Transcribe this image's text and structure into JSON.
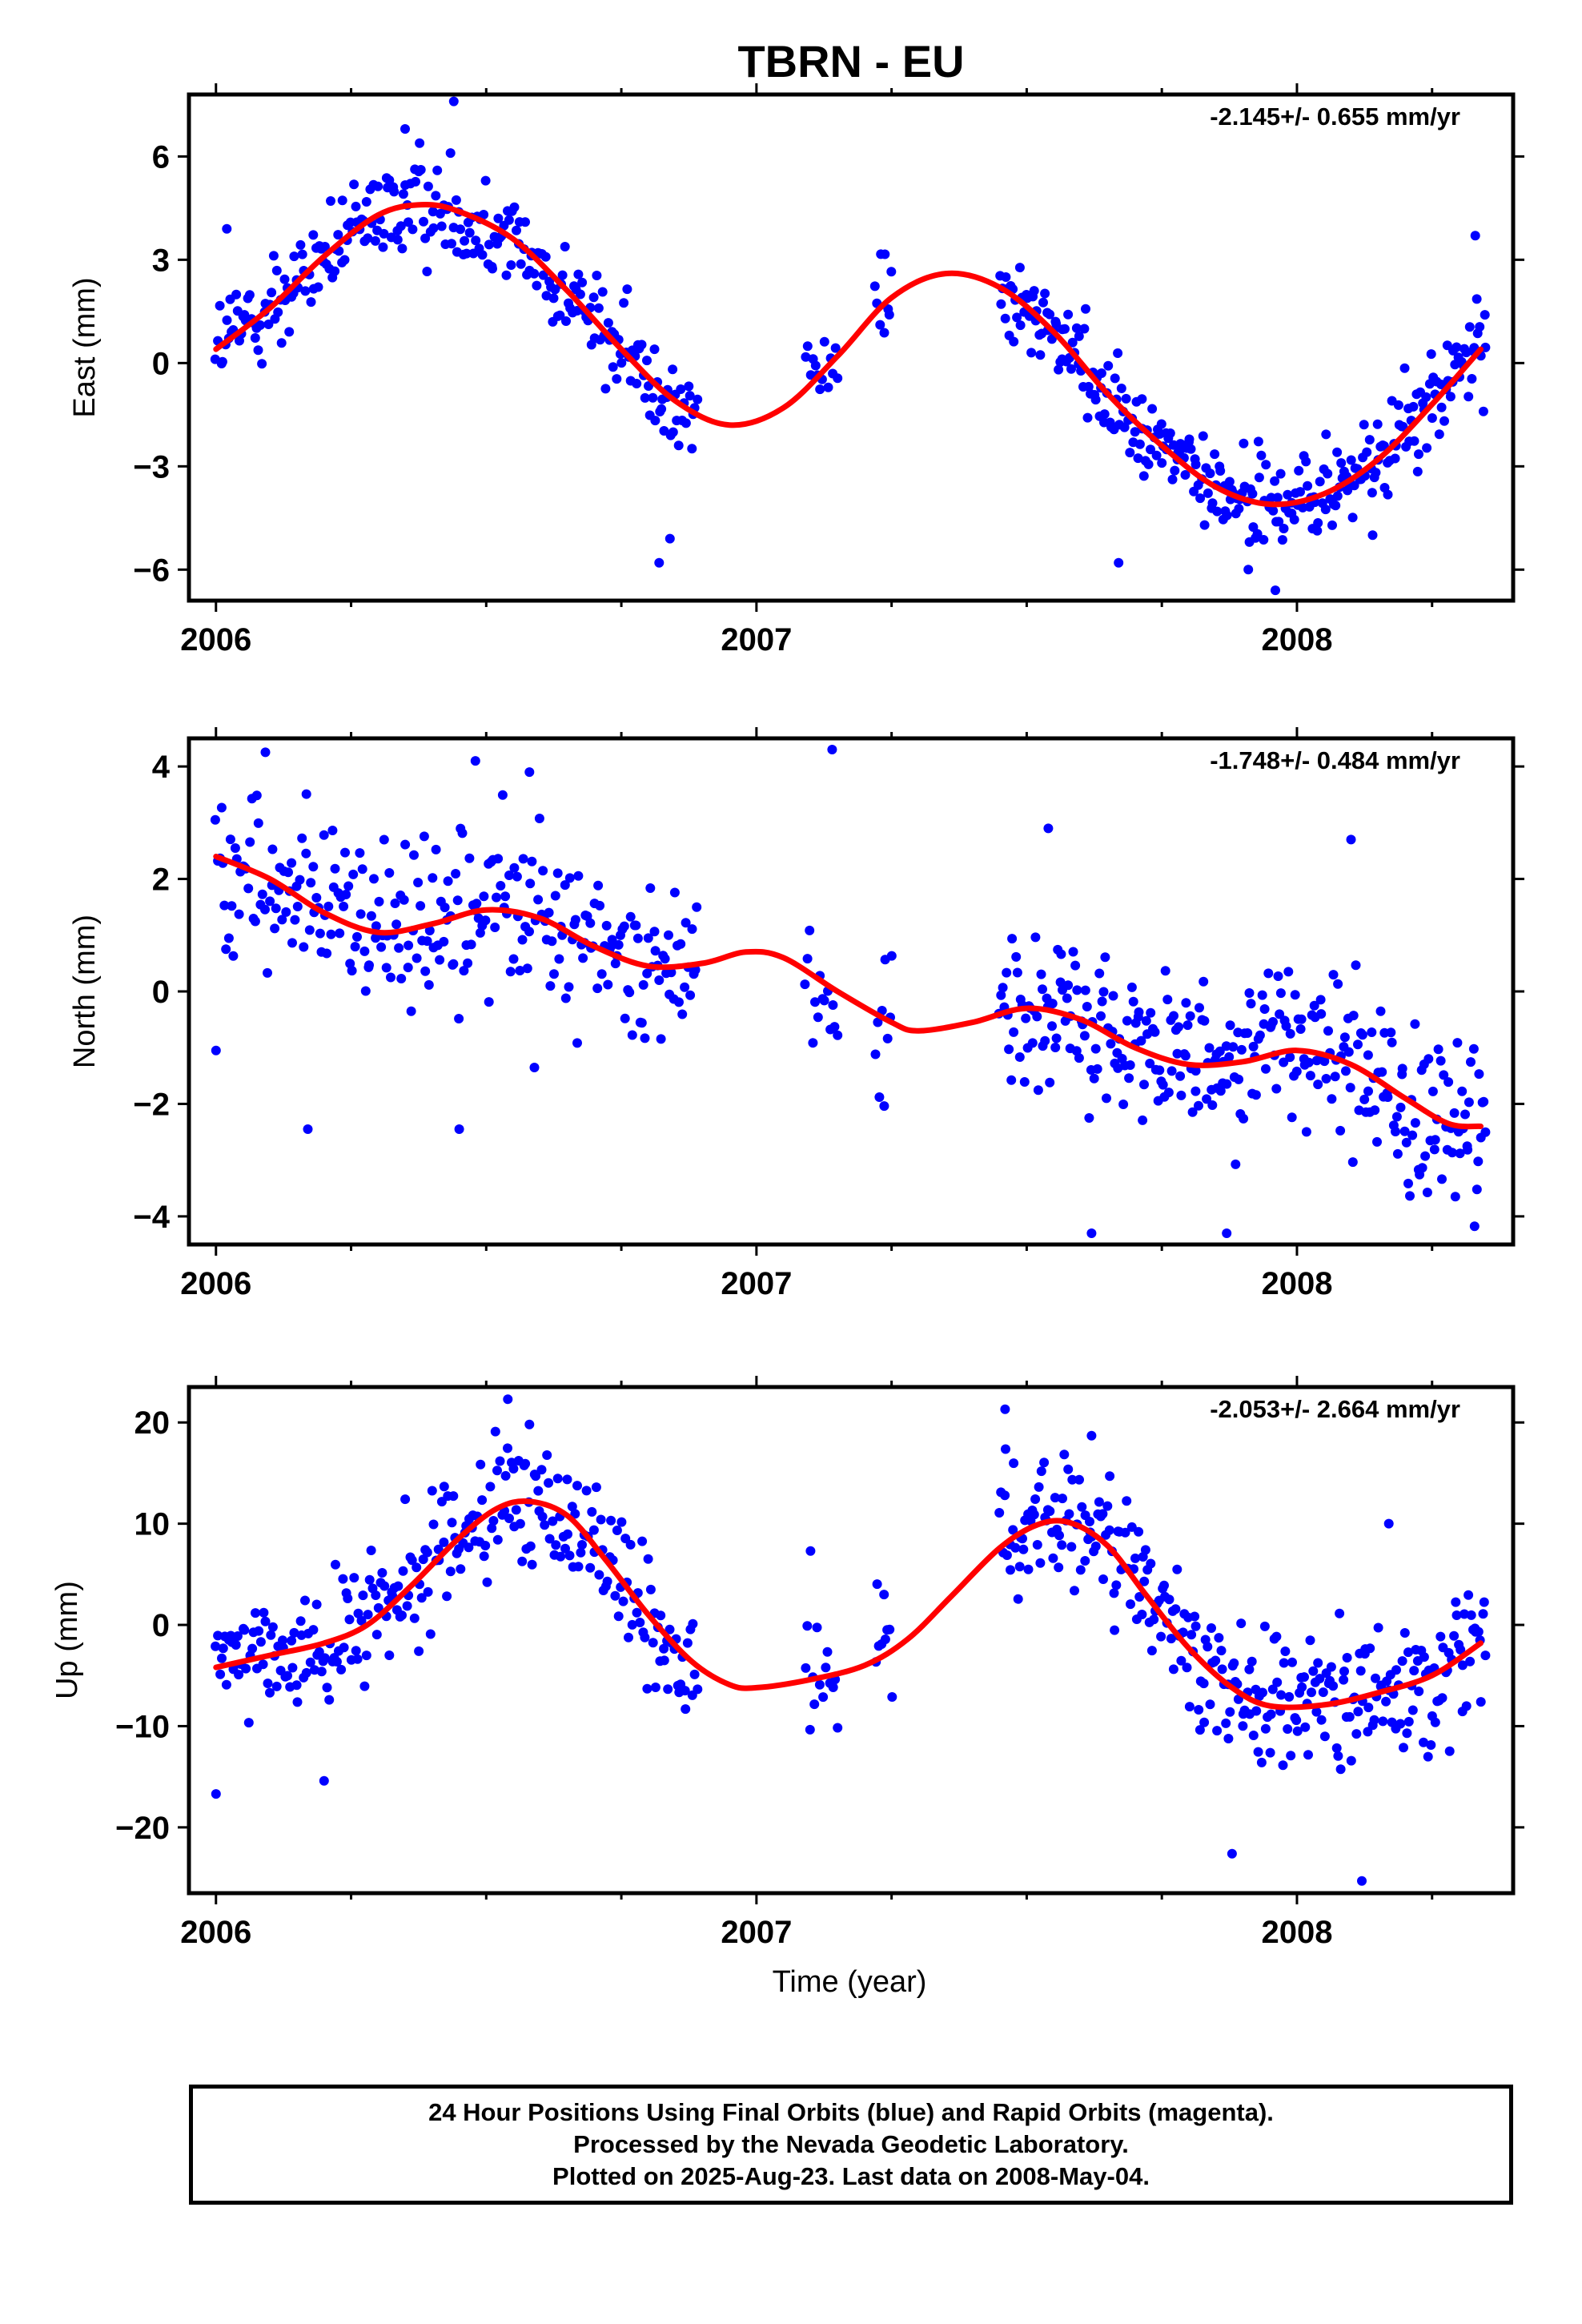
{
  "title": "TBRN - EU",
  "xlabel": "Time (year)",
  "footer": {
    "line1": "24 Hour Positions Using Final Orbits (blue) and Rapid Orbits (magenta).",
    "line2": "Processed by the Nevada Geodetic Laboratory.",
    "line3": "Plotted on 2025-Aug-23. Last data on 2008-May-04."
  },
  "colors": {
    "final_orbits": "#0000ff",
    "rapid_orbits": "#ff00ff",
    "fit": "#ff0000",
    "axes": "#000000"
  },
  "chart_data": [
    {
      "type": "scatter",
      "ylabel": "East (mm)",
      "rate": "-2.145+/- 0.655 mm/yr",
      "xlim": [
        2005.95,
        2008.4
      ],
      "ylim": [
        -6.9,
        7.8
      ],
      "xticks": [
        2006,
        2007,
        2008
      ],
      "yticks": [
        -6,
        -3,
        0,
        3,
        6
      ],
      "yticklabels": [
        "−6",
        "−3",
        "0",
        "3",
        "6"
      ],
      "grid": false,
      "series": [
        {
          "kind": "points",
          "segments": [
            {
              "from": 2006.0,
              "to": 2006.89,
              "n": 270,
              "scatter": 0.95
            },
            {
              "from": 2007.09,
              "to": 2007.15,
              "n": 14,
              "scatter": 0.75
            },
            {
              "from": 2007.22,
              "to": 2007.25,
              "n": 9,
              "scatter": 1.5
            },
            {
              "from": 2007.45,
              "to": 2008.35,
              "n": 300,
              "scatter": 0.95
            }
          ],
          "outliers": [
            [
              2006.02,
              3.9
            ],
            [
              2006.35,
              6.8
            ],
            [
              2006.44,
              7.6
            ],
            [
              2006.82,
              -5.8
            ],
            [
              2006.84,
              -5.1
            ],
            [
              2007.91,
              -6.0
            ],
            [
              2007.96,
              -6.6
            ],
            [
              2007.67,
              -5.8
            ],
            [
              2008.14,
              -5.0
            ],
            [
              2008.33,
              3.7
            ]
          ]
        },
        {
          "kind": "fit",
          "trend_mm_per_yr": -2.145,
          "points": [
            [
              2006.0,
              0.4
            ],
            [
              2006.1,
              1.6
            ],
            [
              2006.2,
              3.1
            ],
            [
              2006.3,
              4.3
            ],
            [
              2006.38,
              4.6
            ],
            [
              2006.45,
              4.4
            ],
            [
              2006.55,
              3.6
            ],
            [
              2006.65,
              2.1
            ],
            [
              2006.75,
              0.4
            ],
            [
              2006.85,
              -1.1
            ],
            [
              2006.95,
              -1.8
            ],
            [
              2007.05,
              -1.3
            ],
            [
              2007.15,
              0.2
            ],
            [
              2007.25,
              1.9
            ],
            [
              2007.35,
              2.6
            ],
            [
              2007.45,
              2.2
            ],
            [
              2007.55,
              0.9
            ],
            [
              2007.65,
              -0.9
            ],
            [
              2007.75,
              -2.4
            ],
            [
              2007.85,
              -3.6
            ],
            [
              2007.95,
              -4.1
            ],
            [
              2008.05,
              -3.8
            ],
            [
              2008.15,
              -2.8
            ],
            [
              2008.25,
              -1.2
            ],
            [
              2008.34,
              0.4
            ]
          ]
        }
      ]
    },
    {
      "type": "scatter",
      "ylabel": "North (mm)",
      "rate": "-1.748+/- 0.484 mm/yr",
      "xlim": [
        2005.95,
        2008.4
      ],
      "ylim": [
        -4.5,
        4.5
      ],
      "xticks": [
        2006,
        2007,
        2008
      ],
      "yticks": [
        -4,
        -2,
        0,
        2,
        4
      ],
      "yticklabels": [
        "−4",
        "−2",
        "0",
        "2",
        "4"
      ],
      "grid": false,
      "series": [
        {
          "kind": "points",
          "segments": [
            {
              "from": 2006.0,
              "to": 2006.89,
              "n": 270,
              "scatter": 1.05
            },
            {
              "from": 2007.09,
              "to": 2007.15,
              "n": 14,
              "scatter": 0.7
            },
            {
              "from": 2007.22,
              "to": 2007.25,
              "n": 9,
              "scatter": 0.9
            },
            {
              "from": 2007.45,
              "to": 2008.35,
              "n": 300,
              "scatter": 1.0
            }
          ],
          "outliers": [
            [
              2006.0,
              -1.05
            ],
            [
              2006.17,
              -2.45
            ],
            [
              2006.45,
              -2.45
            ],
            [
              2006.48,
              4.1
            ],
            [
              2006.58,
              3.9
            ],
            [
              2007.14,
              4.3
            ],
            [
              2007.54,
              2.9
            ],
            [
              2007.62,
              -4.3
            ],
            [
              2007.87,
              -4.3
            ],
            [
              2008.1,
              2.7
            ]
          ]
        },
        {
          "kind": "fit",
          "trend_mm_per_yr": -1.748,
          "points": [
            [
              2006.0,
              2.4
            ],
            [
              2006.1,
              2.0
            ],
            [
              2006.2,
              1.4
            ],
            [
              2006.3,
              1.05
            ],
            [
              2006.4,
              1.2
            ],
            [
              2006.5,
              1.45
            ],
            [
              2006.6,
              1.3
            ],
            [
              2006.7,
              0.8
            ],
            [
              2006.8,
              0.45
            ],
            [
              2006.9,
              0.5
            ],
            [
              2006.98,
              0.7
            ],
            [
              2007.05,
              0.6
            ],
            [
              2007.15,
              0.0
            ],
            [
              2007.25,
              -0.55
            ],
            [
              2007.3,
              -0.7
            ],
            [
              2007.4,
              -0.55
            ],
            [
              2007.5,
              -0.3
            ],
            [
              2007.6,
              -0.5
            ],
            [
              2007.7,
              -1.0
            ],
            [
              2007.8,
              -1.3
            ],
            [
              2007.9,
              -1.25
            ],
            [
              2008.0,
              -1.05
            ],
            [
              2008.1,
              -1.3
            ],
            [
              2008.2,
              -1.9
            ],
            [
              2008.28,
              -2.35
            ],
            [
              2008.34,
              -2.4
            ]
          ]
        }
      ]
    },
    {
      "type": "scatter",
      "ylabel": "Up (mm)",
      "rate": "-2.053+/- 2.664 mm/yr",
      "xlim": [
        2005.95,
        2008.4
      ],
      "ylim": [
        -26.5,
        23.5
      ],
      "xticks": [
        2006,
        2007,
        2008
      ],
      "yticks": [
        -20,
        -10,
        0,
        10,
        20
      ],
      "yticklabels": [
        "−20",
        "−10",
        "0",
        "10",
        "20"
      ],
      "grid": false,
      "series": [
        {
          "kind": "points",
          "segments": [
            {
              "from": 2006.0,
              "to": 2006.89,
              "n": 270,
              "scatter": 4.3
            },
            {
              "from": 2007.09,
              "to": 2007.15,
              "n": 14,
              "scatter": 4.0
            },
            {
              "from": 2007.22,
              "to": 2007.25,
              "n": 9,
              "scatter": 4.5
            },
            {
              "from": 2007.45,
              "to": 2008.35,
              "n": 300,
              "scatter": 4.6
            }
          ],
          "outliers": [
            [
              2006.0,
              -16.7
            ],
            [
              2006.2,
              -15.4
            ],
            [
              2006.54,
              22.3
            ],
            [
              2006.58,
              19.8
            ],
            [
              2007.1,
              7.3
            ],
            [
              2007.46,
              21.3
            ],
            [
              2007.88,
              -22.6
            ],
            [
              2008.12,
              -25.3
            ],
            [
              2008.17,
              10.0
            ],
            [
              2007.62,
              18.7
            ]
          ]
        },
        {
          "kind": "fit",
          "trend_mm_per_yr": -2.053,
          "points": [
            [
              2006.0,
              -4.2
            ],
            [
              2006.1,
              -3.0
            ],
            [
              2006.2,
              -1.8
            ],
            [
              2006.28,
              0.0
            ],
            [
              2006.36,
              3.8
            ],
            [
              2006.45,
              8.6
            ],
            [
              2006.52,
              11.5
            ],
            [
              2006.58,
              12.2
            ],
            [
              2006.65,
              10.8
            ],
            [
              2006.72,
              6.5
            ],
            [
              2006.8,
              1.0
            ],
            [
              2006.88,
              -3.6
            ],
            [
              2006.95,
              -5.9
            ],
            [
              2007.0,
              -6.2
            ],
            [
              2007.1,
              -5.4
            ],
            [
              2007.2,
              -4.0
            ],
            [
              2007.28,
              -1.4
            ],
            [
              2007.36,
              2.8
            ],
            [
              2007.45,
              7.6
            ],
            [
              2007.52,
              9.9
            ],
            [
              2007.58,
              10.1
            ],
            [
              2007.65,
              7.8
            ],
            [
              2007.72,
              3.0
            ],
            [
              2007.8,
              -2.3
            ],
            [
              2007.88,
              -6.2
            ],
            [
              2007.95,
              -8.0
            ],
            [
              2008.05,
              -7.9
            ],
            [
              2008.15,
              -6.7
            ],
            [
              2008.25,
              -5.0
            ],
            [
              2008.34,
              -1.8
            ]
          ]
        }
      ]
    }
  ]
}
